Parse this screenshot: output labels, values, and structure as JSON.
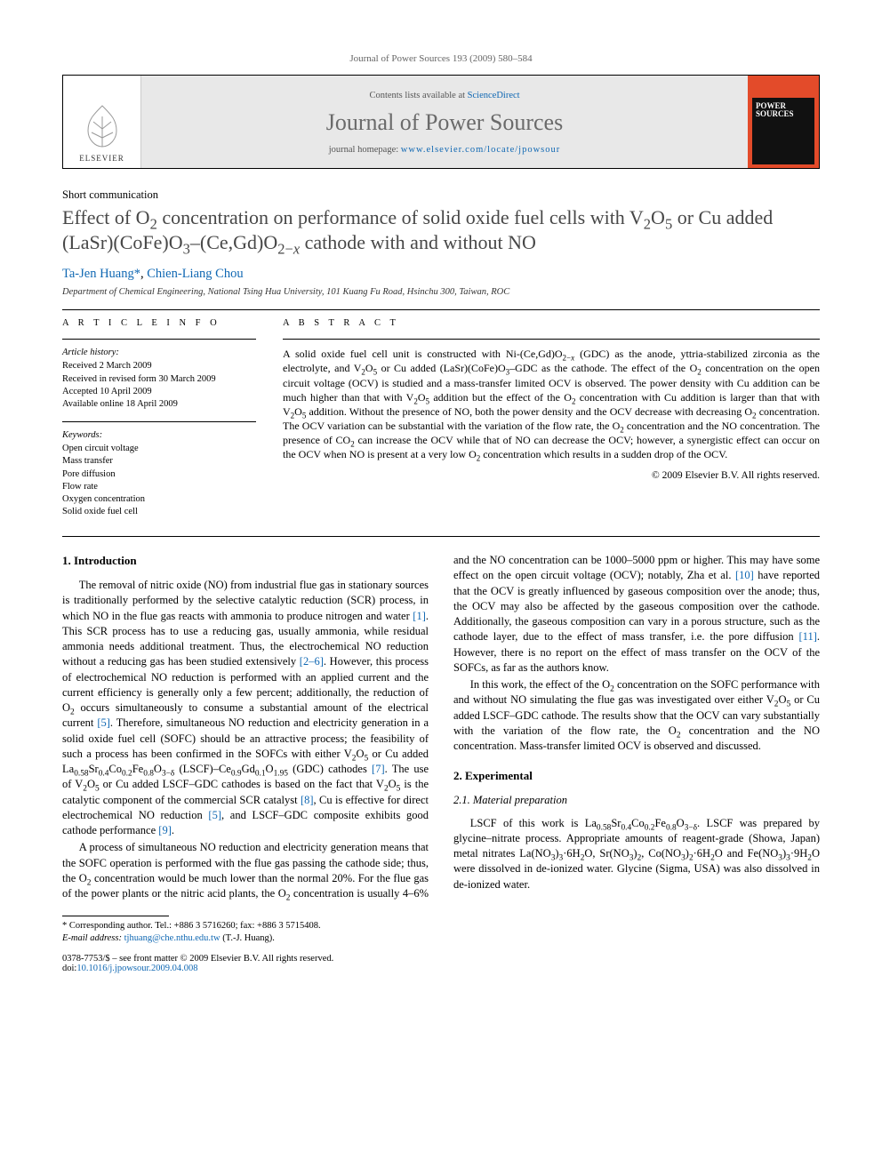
{
  "running_head": "Journal of Power Sources 193 (2009) 580–584",
  "header": {
    "publisher": "ELSEVIER",
    "contents_prefix": "Contents lists available at ",
    "contents_link": "ScienceDirect",
    "journal": "Journal of Power Sources",
    "homepage_prefix": "journal homepage: ",
    "homepage_url": "www.elsevier.com/locate/jpowsour",
    "cover_text": "POWER SOURCES"
  },
  "article_type": "Short communication",
  "title_html": "Effect of O<sub>2</sub> concentration on performance of solid oxide fuel cells with V<sub>2</sub>O<sub>5</sub> or Cu added (LaSr)(CoFe)O<sub>3</sub>–(Ce,Gd)O<sub>2−<i>x</i></sub> cathode with and without NO",
  "authors_html": "<a href=\"#\">Ta-Jen Huang</a><span class=\"corr-mark\">*</span>, <a href=\"#\">Chien-Liang Chou</a>",
  "affiliation": "Department of Chemical Engineering, National Tsing Hua University, 101 Kuang Fu Road, Hsinchu 300, Taiwan, ROC",
  "info": {
    "heading": "A R T I C L E   I N F O",
    "history_label": "Article history:",
    "history": [
      "Received 2 March 2009",
      "Received in revised form 30 March 2009",
      "Accepted 10 April 2009",
      "Available online 18 April 2009"
    ],
    "keywords_label": "Keywords:",
    "keywords": [
      "Open circuit voltage",
      "Mass transfer",
      "Pore diffusion",
      "Flow rate",
      "Oxygen concentration",
      "Solid oxide fuel cell"
    ]
  },
  "abstract": {
    "heading": "A B S T R A C T",
    "text_html": "A solid oxide fuel cell unit is constructed with Ni-(Ce,Gd)O<sub>2−<i>x</i></sub> (GDC) as the anode, yttria-stabilized zirconia as the electrolyte, and V<sub>2</sub>O<sub>5</sub> or Cu added (LaSr)(CoFe)O<sub>3</sub>–GDC as the cathode. The effect of the O<sub>2</sub> concentration on the open circuit voltage (OCV) is studied and a mass-transfer limited OCV is observed. The power density with Cu addition can be much higher than that with V<sub>2</sub>O<sub>5</sub> addition but the effect of the O<sub>2</sub> concentration with Cu addition is larger than that with V<sub>2</sub>O<sub>5</sub> addition. Without the presence of NO, both the power density and the OCV decrease with decreasing O<sub>2</sub> concentration. The OCV variation can be substantial with the variation of the flow rate, the O<sub>2</sub> concentration and the NO concentration. The presence of CO<sub>2</sub> can increase the OCV while that of NO can decrease the OCV; however, a synergistic effect can occur on the OCV when NO is present at a very low O<sub>2</sub> concentration which results in a sudden drop of the OCV.",
    "copyright": "© 2009 Elsevier B.V. All rights reserved."
  },
  "sections": {
    "s1_head": "1.  Introduction",
    "s1_p1_html": "The removal of nitric oxide (NO) from industrial flue gas in stationary sources is traditionally performed by the selective catalytic reduction (SCR) process, in which NO in the flue gas reacts with ammonia to produce nitrogen and water <a href=\"#\">[1]</a>. This SCR process has to use a reducing gas, usually ammonia, while residual ammonia needs additional treatment. Thus, the electrochemical NO reduction without a reducing gas has been studied extensively <a href=\"#\">[2–6]</a>. However, this process of electrochemical NO reduction is performed with an applied current and the current efficiency is generally only a few percent; additionally, the reduction of O<sub>2</sub> occurs simultaneously to consume a substantial amount of the electrical current <a href=\"#\">[5]</a>. Therefore, simultaneous NO reduction and electricity generation in a solid oxide fuel cell (SOFC) should be an attractive process; the feasibility of such a process has been confirmed in the SOFCs with either V<sub>2</sub>O<sub>5</sub> or Cu added La<sub>0.58</sub>Sr<sub>0.4</sub>Co<sub>0.2</sub>Fe<sub>0.8</sub>O<sub>3−δ</sub> (LSCF)–Ce<sub>0.9</sub>Gd<sub>0.1</sub>O<sub>1.95</sub> (GDC) cathodes <a href=\"#\">[7]</a>. The use of V<sub>2</sub>O<sub>5</sub> or Cu added LSCF–GDC cathodes is based on the fact that V<sub>2</sub>O<sub>5</sub> is the catalytic component of the commercial SCR catalyst <a href=\"#\">[8]</a>, Cu is effective for direct electrochemical NO reduction <a href=\"#\">[5]</a>, and LSCF–GDC composite exhibits good cathode performance <a href=\"#\">[9]</a>.",
    "s1_p2_html": "A process of simultaneous NO reduction and electricity generation means that the SOFC operation is performed with the flue gas passing the cathode side; thus, the O<sub>2</sub> concentration would be much lower than the normal 20%. For the flue gas of the power plants or the nitric acid plants, the O<sub>2</sub> concentration is usually 4–6% and the NO concentration can be 1000–5000 ppm or higher. This may have some effect on the open circuit voltage (OCV); notably, Zha et al. <a href=\"#\">[10]</a> have reported that the OCV is greatly influenced by gaseous composition over the anode; thus, the OCV may also be affected by the gaseous composition over the cathode. Additionally, the gaseous composition can vary in a porous structure, such as the cathode layer, due to the effect of mass transfer, i.e. the pore diffusion <a href=\"#\">[11]</a>. However, there is no report on the effect of mass transfer on the OCV of the SOFCs, as far as the authors know.",
    "s1_p3_html": "In this work, the effect of the O<sub>2</sub> concentration on the SOFC performance with and without NO simulating the flue gas was investigated over either V<sub>2</sub>O<sub>5</sub> or Cu added LSCF–GDC cathode. The results show that the OCV can vary substantially with the variation of the flow rate, the O<sub>2</sub> concentration and the NO concentration. Mass-transfer limited OCV is observed and discussed.",
    "s2_head": "2.  Experimental",
    "s2_1_head": "2.1.  Material preparation",
    "s2_1_p1_html": "LSCF of this work is La<sub>0.58</sub>Sr<sub>0.4</sub>Co<sub>0.2</sub>Fe<sub>0.8</sub>O<sub>3−δ</sub>. LSCF was prepared by glycine–nitrate process. Appropriate amounts of reagent-grade (Showa, Japan) metal nitrates La(NO<sub>3</sub>)<sub>3</sub>·6H<sub>2</sub>O, Sr(NO<sub>3</sub>)<sub>2</sub>, Co(NO<sub>3</sub>)<sub>2</sub>·6H<sub>2</sub>O and Fe(NO<sub>3</sub>)<sub>3</sub>·9H<sub>2</sub>O were dissolved in de-ionized water. Glycine (Sigma, USA) was also dissolved in de-ionized water."
  },
  "footnote": {
    "line1": "* Corresponding author. Tel.: +886 3 5716260; fax: +886 3 5715408.",
    "line2_label": "E-mail address: ",
    "line2_email": "tjhuang@che.nthu.edu.tw",
    "line2_tail": " (T.-J. Huang)."
  },
  "footer": {
    "left_line1": "0378-7753/$ – see front matter © 2009 Elsevier B.V. All rights reserved.",
    "left_line2_prefix": "doi:",
    "left_line2_link": "10.1016/j.jpowsour.2009.04.008"
  }
}
